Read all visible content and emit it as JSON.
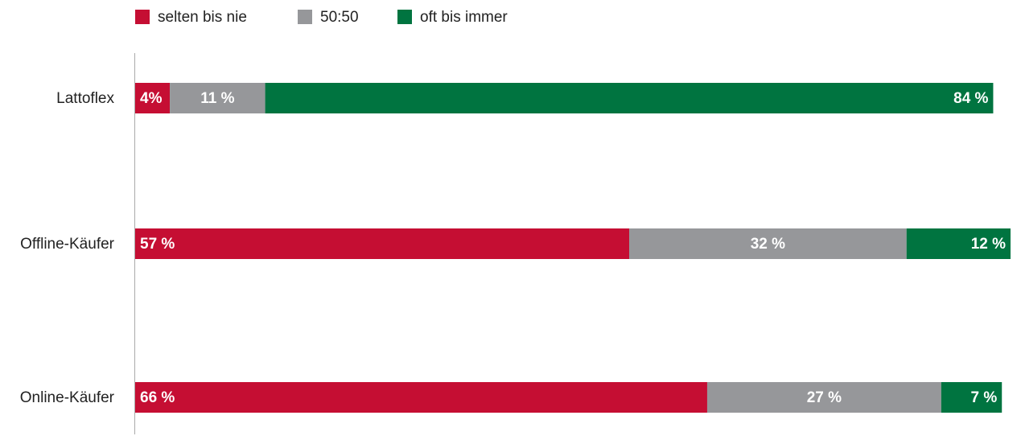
{
  "chart_data": {
    "type": "stacked-bar-horizontal",
    "categories": [
      "Lattoflex",
      "Offline-Käufer",
      "Online-Käufer"
    ],
    "series": [
      {
        "name": "selten bis nie",
        "color": "#c50e33",
        "values": [
          4,
          57,
          66
        ],
        "value_labels": [
          "4%",
          "57 %",
          "66 %"
        ]
      },
      {
        "name": "50:50",
        "color": "#96979a",
        "values": [
          11,
          32,
          27
        ],
        "value_labels": [
          "11 %",
          "32 %",
          "27 %"
        ]
      },
      {
        "name": "oft bis immer",
        "color": "#007440",
        "values": [
          84,
          12,
          7
        ],
        "value_labels": [
          "84 %",
          "12 %",
          "7 %"
        ]
      }
    ],
    "xlim": [
      0,
      101
    ]
  }
}
